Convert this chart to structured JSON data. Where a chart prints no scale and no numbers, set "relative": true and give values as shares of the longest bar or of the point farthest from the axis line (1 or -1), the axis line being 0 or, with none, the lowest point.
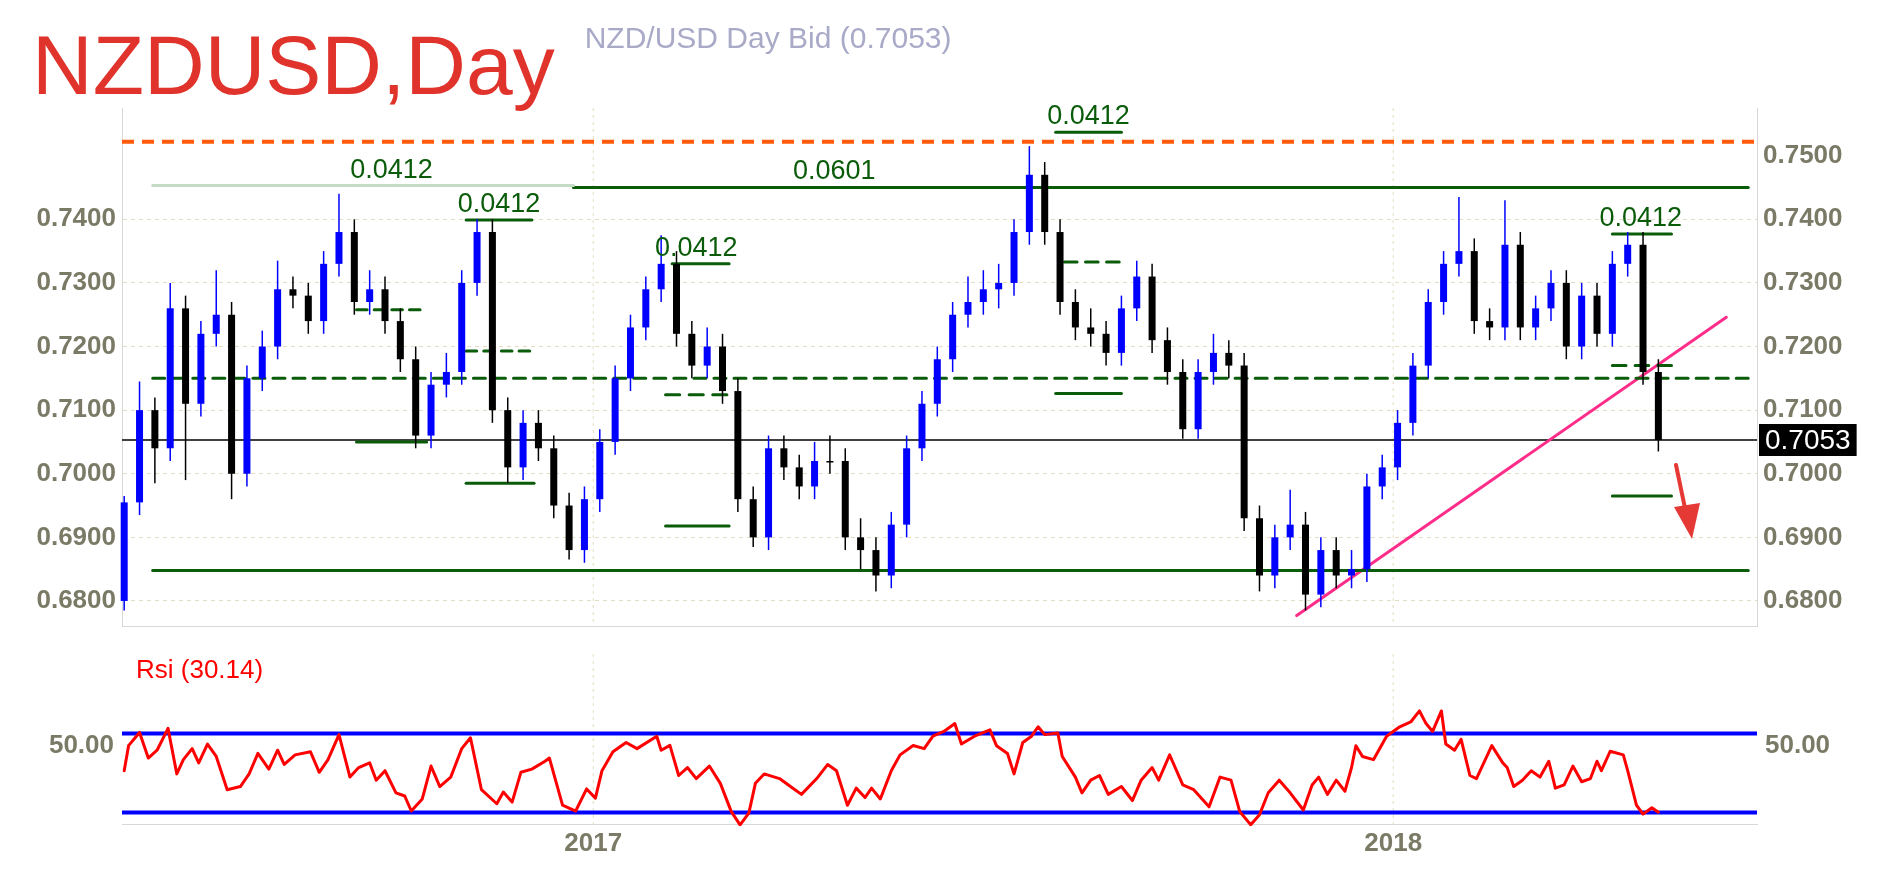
{
  "chart_data": [
    {
      "type": "candlestick",
      "title": "NZDUSD,Day",
      "subtitle": "NZD/USD Day Bid (0.7053)",
      "x": [
        "2016-06-01",
        "2016-06-08",
        "2016-06-15",
        "2016-06-22",
        "2016-06-29",
        "2016-07-06",
        "2016-07-13",
        "2016-07-20",
        "2016-07-27",
        "2016-08-03",
        "2016-08-10",
        "2016-08-17",
        "2016-08-24",
        "2016-08-31",
        "2016-09-07",
        "2016-09-14",
        "2016-09-21",
        "2016-09-28",
        "2016-10-05",
        "2016-10-12",
        "2016-10-19",
        "2016-10-26",
        "2016-11-02",
        "2016-11-09",
        "2016-11-16",
        "2016-11-23",
        "2016-11-30",
        "2016-12-07",
        "2016-12-14",
        "2016-12-21",
        "2016-12-28",
        "2017-01-04",
        "2017-01-11",
        "2017-01-18",
        "2017-01-25",
        "2017-02-01",
        "2017-02-08",
        "2017-02-15",
        "2017-02-22",
        "2017-03-01",
        "2017-03-08",
        "2017-03-15",
        "2017-03-22",
        "2017-03-29",
        "2017-04-05",
        "2017-04-12",
        "2017-04-19",
        "2017-04-26",
        "2017-05-03",
        "2017-05-10",
        "2017-05-17",
        "2017-05-24",
        "2017-05-31",
        "2017-06-07",
        "2017-06-14",
        "2017-06-21",
        "2017-06-28",
        "2017-07-05",
        "2017-07-12",
        "2017-07-19",
        "2017-07-26",
        "2017-08-02",
        "2017-08-09",
        "2017-08-16",
        "2017-08-23",
        "2017-08-30",
        "2017-09-06",
        "2017-09-13",
        "2017-09-20",
        "2017-09-27",
        "2017-10-04",
        "2017-10-11",
        "2017-10-18",
        "2017-10-25",
        "2017-11-01",
        "2017-11-08",
        "2017-11-15",
        "2017-11-22",
        "2017-11-29",
        "2017-12-06",
        "2017-12-13",
        "2017-12-20",
        "2017-12-27",
        "2018-01-03",
        "2018-01-10",
        "2018-01-17",
        "2018-01-24",
        "2018-01-31",
        "2018-02-07",
        "2018-02-14",
        "2018-02-21",
        "2018-02-28",
        "2018-03-07",
        "2018-03-14",
        "2018-03-21",
        "2018-03-28",
        "2018-04-04",
        "2018-04-11",
        "2018-04-18",
        "2018-04-25",
        "2018-05-02"
      ],
      "ohlc": [
        [
          0.68,
          0.6965,
          0.6785,
          0.6955
        ],
        [
          0.6955,
          0.7145,
          0.6935,
          0.71
        ],
        [
          0.71,
          0.712,
          0.6985,
          0.704
        ],
        [
          0.704,
          0.73,
          0.702,
          0.726
        ],
        [
          0.726,
          0.728,
          0.699,
          0.711
        ],
        [
          0.711,
          0.724,
          0.709,
          0.722
        ],
        [
          0.722,
          0.732,
          0.72,
          0.725
        ],
        [
          0.725,
          0.727,
          0.696,
          0.7
        ],
        [
          0.7,
          0.717,
          0.698,
          0.715
        ],
        [
          0.715,
          0.7225,
          0.713,
          0.72
        ],
        [
          0.72,
          0.7335,
          0.718,
          0.729
        ],
        [
          0.729,
          0.731,
          0.726,
          0.728
        ],
        [
          0.728,
          0.73,
          0.722,
          0.724
        ],
        [
          0.724,
          0.735,
          0.722,
          0.733
        ],
        [
          0.733,
          0.744,
          0.731,
          0.738
        ],
        [
          0.738,
          0.74,
          0.725,
          0.727
        ],
        [
          0.727,
          0.732,
          0.725,
          0.729
        ],
        [
          0.729,
          0.731,
          0.722,
          0.724
        ],
        [
          0.724,
          0.726,
          0.716,
          0.718
        ],
        [
          0.718,
          0.72,
          0.704,
          0.706
        ],
        [
          0.706,
          0.716,
          0.704,
          0.714
        ],
        [
          0.714,
          0.719,
          0.712,
          0.716
        ],
        [
          0.716,
          0.732,
          0.714,
          0.73
        ],
        [
          0.73,
          0.74,
          0.728,
          0.738
        ],
        [
          0.738,
          0.74,
          0.708,
          0.71
        ],
        [
          0.71,
          0.712,
          0.6985,
          0.701
        ],
        [
          0.701,
          0.71,
          0.699,
          0.708
        ],
        [
          0.708,
          0.71,
          0.702,
          0.704
        ],
        [
          0.704,
          0.706,
          0.693,
          0.695
        ],
        [
          0.695,
          0.697,
          0.6865,
          0.688
        ],
        [
          0.688,
          0.698,
          0.686,
          0.696
        ],
        [
          0.696,
          0.707,
          0.694,
          0.705
        ],
        [
          0.705,
          0.717,
          0.703,
          0.715
        ],
        [
          0.715,
          0.725,
          0.713,
          0.723
        ],
        [
          0.723,
          0.731,
          0.721,
          0.729
        ],
        [
          0.729,
          0.7375,
          0.727,
          0.733
        ],
        [
          0.733,
          0.735,
          0.72,
          0.722
        ],
        [
          0.722,
          0.724,
          0.715,
          0.717
        ],
        [
          0.717,
          0.723,
          0.715,
          0.72
        ],
        [
          0.72,
          0.722,
          0.711,
          0.713
        ],
        [
          0.713,
          0.715,
          0.694,
          0.696
        ],
        [
          0.696,
          0.698,
          0.6885,
          0.69
        ],
        [
          0.69,
          0.706,
          0.688,
          0.704
        ],
        [
          0.704,
          0.706,
          0.699,
          0.701
        ],
        [
          0.701,
          0.703,
          0.696,
          0.698
        ],
        [
          0.698,
          0.705,
          0.696,
          0.702
        ],
        [
          0.702,
          0.706,
          0.7,
          0.702
        ],
        [
          0.702,
          0.704,
          0.688,
          0.69
        ],
        [
          0.69,
          0.693,
          0.685,
          0.688
        ],
        [
          0.688,
          0.69,
          0.6815,
          0.684
        ],
        [
          0.684,
          0.694,
          0.682,
          0.692
        ],
        [
          0.692,
          0.706,
          0.69,
          0.704
        ],
        [
          0.704,
          0.713,
          0.702,
          0.711
        ],
        [
          0.711,
          0.72,
          0.709,
          0.718
        ],
        [
          0.718,
          0.727,
          0.716,
          0.725
        ],
        [
          0.725,
          0.731,
          0.723,
          0.727
        ],
        [
          0.727,
          0.732,
          0.725,
          0.729
        ],
        [
          0.729,
          0.733,
          0.726,
          0.73
        ],
        [
          0.73,
          0.74,
          0.728,
          0.738
        ],
        [
          0.738,
          0.7515,
          0.736,
          0.747
        ],
        [
          0.747,
          0.749,
          0.736,
          0.738
        ],
        [
          0.738,
          0.74,
          0.725,
          0.727
        ],
        [
          0.727,
          0.729,
          0.721,
          0.723
        ],
        [
          0.723,
          0.726,
          0.72,
          0.722
        ],
        [
          0.722,
          0.724,
          0.717,
          0.719
        ],
        [
          0.719,
          0.728,
          0.717,
          0.726
        ],
        [
          0.726,
          0.7335,
          0.724,
          0.731
        ],
        [
          0.731,
          0.733,
          0.719,
          0.721
        ],
        [
          0.721,
          0.723,
          0.714,
          0.716
        ],
        [
          0.716,
          0.718,
          0.7055,
          0.707
        ],
        [
          0.707,
          0.718,
          0.7055,
          0.716
        ],
        [
          0.716,
          0.722,
          0.714,
          0.719
        ],
        [
          0.719,
          0.721,
          0.715,
          0.717
        ],
        [
          0.717,
          0.719,
          0.691,
          0.693
        ],
        [
          0.693,
          0.695,
          0.6815,
          0.684
        ],
        [
          0.684,
          0.692,
          0.682,
          0.69
        ],
        [
          0.69,
          0.6975,
          0.688,
          0.692
        ],
        [
          0.692,
          0.694,
          0.6785,
          0.681
        ],
        [
          0.681,
          0.69,
          0.679,
          0.688
        ],
        [
          0.688,
          0.69,
          0.682,
          0.684
        ],
        [
          0.684,
          0.688,
          0.682,
          0.685
        ],
        [
          0.685,
          0.7,
          0.683,
          0.698
        ],
        [
          0.698,
          0.703,
          0.696,
          0.701
        ],
        [
          0.701,
          0.71,
          0.699,
          0.708
        ],
        [
          0.708,
          0.719,
          0.706,
          0.717
        ],
        [
          0.717,
          0.729,
          0.715,
          0.727
        ],
        [
          0.727,
          0.735,
          0.725,
          0.733
        ],
        [
          0.733,
          0.7435,
          0.731,
          0.735
        ],
        [
          0.735,
          0.737,
          0.722,
          0.724
        ],
        [
          0.724,
          0.726,
          0.721,
          0.723
        ],
        [
          0.723,
          0.743,
          0.721,
          0.736
        ],
        [
          0.736,
          0.738,
          0.721,
          0.723
        ],
        [
          0.723,
          0.728,
          0.721,
          0.726
        ],
        [
          0.726,
          0.732,
          0.724,
          0.73
        ],
        [
          0.73,
          0.732,
          0.718,
          0.72
        ],
        [
          0.72,
          0.73,
          0.718,
          0.728
        ],
        [
          0.728,
          0.73,
          0.72,
          0.722
        ],
        [
          0.722,
          0.735,
          0.72,
          0.733
        ],
        [
          0.733,
          0.738,
          0.731,
          0.736
        ],
        [
          0.736,
          0.738,
          0.714,
          0.716
        ],
        [
          0.716,
          0.718,
          0.7035,
          0.7053
        ]
      ],
      "colors": [
        "#0000ff",
        "#0000ff",
        "#000000",
        "#0000ff",
        "#000000",
        "#0000ff",
        "#0000ff",
        "#000000",
        "#0000ff",
        "#0000ff",
        "#0000ff",
        "#000000",
        "#000000",
        "#0000ff",
        "#0000ff",
        "#000000",
        "#0000ff",
        "#000000",
        "#000000",
        "#000000",
        "#0000ff",
        "#0000ff",
        "#0000ff",
        "#0000ff",
        "#000000",
        "#000000",
        "#0000ff",
        "#000000",
        "#000000",
        "#000000",
        "#0000ff",
        "#0000ff",
        "#0000ff",
        "#0000ff",
        "#0000ff",
        "#0000ff",
        "#000000",
        "#000000",
        "#0000ff",
        "#000000",
        "#000000",
        "#000000",
        "#0000ff",
        "#000000",
        "#000000",
        "#0000ff",
        "#000000",
        "#000000",
        "#000000",
        "#000000",
        "#0000ff",
        "#0000ff",
        "#0000ff",
        "#0000ff",
        "#0000ff",
        "#0000ff",
        "#0000ff",
        "#0000ff",
        "#0000ff",
        "#0000ff",
        "#000000",
        "#000000",
        "#000000",
        "#000000",
        "#000000",
        "#0000ff",
        "#0000ff",
        "#000000",
        "#000000",
        "#000000",
        "#0000ff",
        "#0000ff",
        "#000000",
        "#000000",
        "#000000",
        "#0000ff",
        "#0000ff",
        "#000000",
        "#0000ff",
        "#000000",
        "#0000ff",
        "#0000ff",
        "#0000ff",
        "#0000ff",
        "#0000ff",
        "#0000ff",
        "#0000ff",
        "#0000ff",
        "#000000",
        "#000000",
        "#0000ff",
        "#000000",
        "#0000ff",
        "#0000ff",
        "#000000",
        "#0000ff",
        "#000000",
        "#0000ff",
        "#0000ff",
        "#000000",
        "#000000"
      ],
      "series": [
        {
          "type": "line",
          "x": [
            "2016-06-14",
            "2016-12-23"
          ],
          "values": [
            0.7453,
            0.7453
          ],
          "color": "#c4dcc4"
        },
        {
          "type": "line",
          "x": [
            "2016-12-23",
            "2018-06-12"
          ],
          "values": [
            0.745,
            0.745
          ],
          "color": "#0a5c0a"
        },
        {
          "type": "line",
          "x": [
            "2016-06-14",
            "2018-06-12"
          ],
          "values": [
            0.6848,
            0.6848
          ],
          "color": "#0a5c0a"
        },
        {
          "type": "line",
          "x": [
            "2016-06-14",
            "2018-06-12"
          ],
          "values": [
            0.715,
            0.715
          ],
          "color": "#0a5c0a",
          "line_style": "dashed"
        },
        {
          "type": "line",
          "x": [
            "2016-09-15",
            "2016-10-17"
          ],
          "values": [
            0.705,
            0.705
          ],
          "color": "#0a5c0a"
        },
        {
          "type": "line",
          "x": [
            "2016-11-04",
            "2016-12-05"
          ],
          "values": [
            0.6985,
            0.6985
          ],
          "color": "#0a5c0a"
        },
        {
          "type": "line",
          "x": [
            "2017-02-03",
            "2017-03-04"
          ],
          "values": [
            0.6918,
            0.6918
          ],
          "color": "#0a5c0a"
        },
        {
          "type": "line",
          "x": [
            "2017-07-31",
            "2017-08-30"
          ],
          "values": [
            0.7126,
            0.7126
          ],
          "color": "#0a5c0a"
        },
        {
          "type": "line",
          "x": [
            "2018-04-11",
            "2018-05-08"
          ],
          "values": [
            0.6965,
            0.6965
          ],
          "color": "#0a5c0a"
        },
        {
          "type": "line",
          "x": [
            "2016-11-04",
            "2016-12-04"
          ],
          "values": [
            0.7399,
            0.7399
          ],
          "color": "#0a5c0a"
        },
        {
          "type": "line",
          "x": [
            "2017-02-06",
            "2017-03-04"
          ],
          "values": [
            0.733,
            0.733
          ],
          "color": "#0a5c0a"
        },
        {
          "type": "line",
          "x": [
            "2017-07-31",
            "2017-08-30"
          ],
          "values": [
            0.7537,
            0.7537
          ],
          "color": "#0a5c0a"
        },
        {
          "type": "line",
          "x": [
            "2018-04-11",
            "2018-05-08"
          ],
          "values": [
            0.7377,
            0.7377
          ],
          "color": "#0a5c0a"
        },
        {
          "type": "line",
          "x": [
            "2016-09-15",
            "2016-10-14"
          ],
          "values": [
            0.7258,
            0.7258
          ],
          "color": "#0a5c0a",
          "line_style": "dashed"
        },
        {
          "type": "line",
          "x": [
            "2016-11-04",
            "2016-12-03"
          ],
          "values": [
            0.7193,
            0.7193
          ],
          "color": "#0a5c0a",
          "line_style": "dashed"
        },
        {
          "type": "line",
          "x": [
            "2017-02-03",
            "2017-03-03"
          ],
          "values": [
            0.7124,
            0.7124
          ],
          "color": "#0a5c0a",
          "line_style": "dashed"
        },
        {
          "type": "line",
          "x": [
            "2017-08-04",
            "2017-08-29"
          ],
          "values": [
            0.7333,
            0.7333
          ],
          "color": "#0a5c0a",
          "line_style": "dashed"
        },
        {
          "type": "line",
          "x": [
            "2018-04-11",
            "2018-05-08"
          ],
          "values": [
            0.717,
            0.717
          ],
          "color": "#0a5c0a",
          "line_style": "dashed"
        },
        {
          "type": "line",
          "x": [
            "2017-11-18",
            "2018-06-02"
          ],
          "values": [
            0.6777,
            0.7246
          ],
          "color": "#ff2d8a"
        }
      ],
      "ref_lines": [
        {
          "axis": "y",
          "value": 0.7522,
          "color": "#ff5a0a",
          "line_style": "dashed"
        },
        {
          "axis": "y",
          "value": 0.7053,
          "label": "0.7053",
          "color": "#000000"
        }
      ],
      "annotations": [
        {
          "text": "0.0412",
          "x": "2016-10-01",
          "y": 0.7453
        },
        {
          "text": "0.0412",
          "x": "2016-11-19",
          "y": 0.7399
        },
        {
          "text": "0.0412",
          "x": "2017-02-17",
          "y": 0.733
        },
        {
          "text": "0.0601",
          "x": "2017-04-21",
          "y": 0.745
        },
        {
          "text": "0.0412",
          "x": "2017-08-15",
          "y": 0.7537
        },
        {
          "text": "0.0412",
          "x": "2018-04-24",
          "y": 0.7377
        }
      ],
      "xlim": [
        "2016-05-31",
        "2018-06-16"
      ],
      "xticks": [
        {
          "value": "2017-01-01",
          "label": null
        },
        {
          "value": "2018-01-01",
          "label": null
        }
      ],
      "ylim": [
        0.676,
        0.7575
      ],
      "yticks": [
        {
          "value": 0.68,
          "label": "0.6800"
        },
        {
          "value": 0.69,
          "label": "0.6900"
        },
        {
          "value": 0.7,
          "label": "0.7000"
        },
        {
          "value": 0.71,
          "label": "0.7100"
        },
        {
          "value": 0.72,
          "label": "0.7200"
        },
        {
          "value": 0.73,
          "label": "0.7300"
        },
        {
          "value": 0.74,
          "label": "0.7400"
        }
      ],
      "y2lim": [
        0.676,
        0.7575
      ],
      "y2ticks": [
        {
          "value": 0.68,
          "label": "0.6800"
        },
        {
          "value": 0.69,
          "label": "0.6900"
        },
        {
          "value": 0.7,
          "label": "0.7000"
        },
        {
          "value": 0.71,
          "label": "0.7100"
        },
        {
          "value": 0.72,
          "label": "0.7200"
        },
        {
          "value": 0.73,
          "label": "0.7300"
        },
        {
          "value": 0.74,
          "label": "0.7400"
        },
        {
          "value": 0.75,
          "label": "0.7500"
        }
      ],
      "grid": true,
      "tick_labels": "y"
    },
    {
      "type": "line",
      "title": "Rsi (30.14)",
      "x": [
        "2016-06-01",
        "2016-06-03",
        "2016-06-08",
        "2016-06-12",
        "2016-06-16",
        "2016-06-21",
        "2016-06-25",
        "2016-06-28",
        "2016-07-02",
        "2016-07-05",
        "2016-07-09",
        "2016-07-13",
        "2016-07-18",
        "2016-07-24",
        "2016-07-28",
        "2016-08-01",
        "2016-08-06",
        "2016-08-10",
        "2016-08-13",
        "2016-08-18",
        "2016-08-25",
        "2016-08-29",
        "2016-09-02",
        "2016-09-07",
        "2016-09-12",
        "2016-09-16",
        "2016-09-21",
        "2016-09-24",
        "2016-09-28",
        "2016-10-03",
        "2016-10-07",
        "2016-10-10",
        "2016-10-15",
        "2016-10-19",
        "2016-10-23",
        "2016-10-28",
        "2016-11-02",
        "2016-11-06",
        "2016-11-11",
        "2016-11-18",
        "2016-11-21",
        "2016-11-25",
        "2016-11-29",
        "2016-12-04",
        "2016-12-10",
        "2016-12-12",
        "2016-12-18",
        "2016-12-24",
        "2016-12-29",
        "2017-01-02",
        "2017-01-05",
        "2017-01-10",
        "2017-01-16",
        "2017-01-21",
        "2017-01-30",
        "2017-02-01",
        "2017-02-05",
        "2017-02-09",
        "2017-02-13",
        "2017-02-17",
        "2017-02-23",
        "2017-02-28",
        "2017-03-05",
        "2017-03-09",
        "2017-03-13",
        "2017-03-16",
        "2017-03-20",
        "2017-03-27",
        "2017-04-01",
        "2017-04-06",
        "2017-04-13",
        "2017-04-18",
        "2017-04-22",
        "2017-04-27",
        "2017-05-01",
        "2017-05-05",
        "2017-05-08",
        "2017-05-12",
        "2017-05-17",
        "2017-05-21",
        "2017-05-27",
        "2017-06-01",
        "2017-06-05",
        "2017-06-10",
        "2017-06-15",
        "2017-06-18",
        "2017-06-24",
        "2017-07-01",
        "2017-07-04",
        "2017-07-09",
        "2017-07-12",
        "2017-07-16",
        "2017-07-20",
        "2017-07-23",
        "2017-07-26",
        "2017-08-01",
        "2017-08-03",
        "2017-08-09",
        "2017-08-12",
        "2017-08-16",
        "2017-08-20",
        "2017-08-24",
        "2017-08-30",
        "2017-09-04",
        "2017-09-08",
        "2017-09-13",
        "2017-09-16",
        "2017-09-21",
        "2017-09-27",
        "2017-10-02",
        "2017-10-09",
        "2017-10-14",
        "2017-10-19",
        "2017-10-23",
        "2017-10-28",
        "2017-11-01",
        "2017-11-05",
        "2017-11-10",
        "2017-11-15",
        "2017-11-21",
        "2017-11-25",
        "2017-11-28",
        "2017-12-02",
        "2017-12-06",
        "2017-12-10",
        "2017-12-13",
        "2017-12-15",
        "2017-12-18",
        "2017-12-23",
        "2017-12-29",
        "2018-01-04",
        "2018-01-09",
        "2018-01-13",
        "2018-01-16",
        "2018-01-19",
        "2018-01-23",
        "2018-01-25",
        "2018-01-29",
        "2018-02-01",
        "2018-02-05",
        "2018-02-08",
        "2018-02-15",
        "2018-02-20",
        "2018-02-22",
        "2018-02-25",
        "2018-03-01",
        "2018-03-05",
        "2018-03-09",
        "2018-03-13",
        "2018-03-16",
        "2018-03-20",
        "2018-03-24",
        "2018-03-28",
        "2018-04-01",
        "2018-04-04",
        "2018-04-06",
        "2018-04-10",
        "2018-04-16",
        "2018-04-18",
        "2018-04-22",
        "2018-04-25",
        "2018-04-29",
        "2018-05-02"
      ],
      "series": [
        {
          "color": "#ff0000",
          "values": [
            0.475,
            0.695,
            0.811,
            0.586,
            0.655,
            0.847,
            0.447,
            0.572,
            0.669,
            0.544,
            0.709,
            0.6,
            0.308,
            0.336,
            0.447,
            0.627,
            0.489,
            0.655,
            0.53,
            0.614,
            0.641,
            0.461,
            0.572,
            0.792,
            0.419,
            0.503,
            0.544,
            0.392,
            0.475,
            0.281,
            0.253,
            0.121,
            0.227,
            0.516,
            0.336,
            0.419,
            0.669,
            0.764,
            0.308,
            0.185,
            0.288,
            0.199,
            0.461,
            0.489,
            0.558,
            0.586,
            0.172,
            0.121,
            0.315,
            0.234,
            0.475,
            0.641,
            0.723,
            0.669,
            0.778,
            0.655,
            0.698,
            0.433,
            0.503,
            0.406,
            0.516,
            0.364,
            0.116,
            0,
            0.102,
            0.364,
            0.447,
            0.406,
            0.336,
            0.267,
            0.406,
            0.53,
            0.475,
            0.172,
            0.322,
            0.239,
            0.322,
            0.227,
            0.475,
            0.614,
            0.697,
            0.669,
            0.778,
            0.82,
            0.889,
            0.709,
            0.778,
            0.834,
            0.695,
            0.627,
            0.447,
            0.723,
            0.778,
            0.861,
            0.792,
            0.806,
            0.6,
            0.419,
            0.281,
            0.392,
            0.433,
            0.267,
            0.336,
            0.213,
            0.392,
            0.503,
            0.392,
            0.614,
            0.35,
            0.308,
            0.158,
            0.419,
            0.392,
            0.116,
            0,
            0.088,
            0.281,
            0.392,
            0.281,
            0.13,
            0.35,
            0.419,
            0.267,
            0.392,
            0.295,
            0.503,
            0.695,
            0.6,
            0.572,
            0.778,
            0.861,
            0.903,
            1,
            0.889,
            0.82,
            1,
            0.709,
            0.655,
            0.75,
            0.433,
            0.406,
            0.695,
            0.544,
            0.503,
            0.336,
            0.392,
            0.475,
            0.419,
            0.558,
            0.322,
            0.35,
            0.516,
            0.378,
            0.406,
            0.558,
            0.475,
            0.646,
            0.614,
            0.475,
            0.172,
            0.094,
            0.149,
            0.11
          ]
        }
      ],
      "relative": true,
      "ref_lines": [
        {
          "axis": "y",
          "value": 0.801,
          "color": "#0000ff"
        },
        {
          "axis": "y",
          "value": 0.107,
          "color": "#0000ff"
        }
      ],
      "annotations": [
        "50.00",
        "50.00"
      ],
      "xlim": [
        "2016-05-31",
        "2018-06-16"
      ],
      "xticks": [
        {
          "value": "2017-01-01",
          "label": "2017"
        },
        {
          "value": "2018-01-01",
          "label": "2018"
        }
      ],
      "grid": true
    }
  ]
}
